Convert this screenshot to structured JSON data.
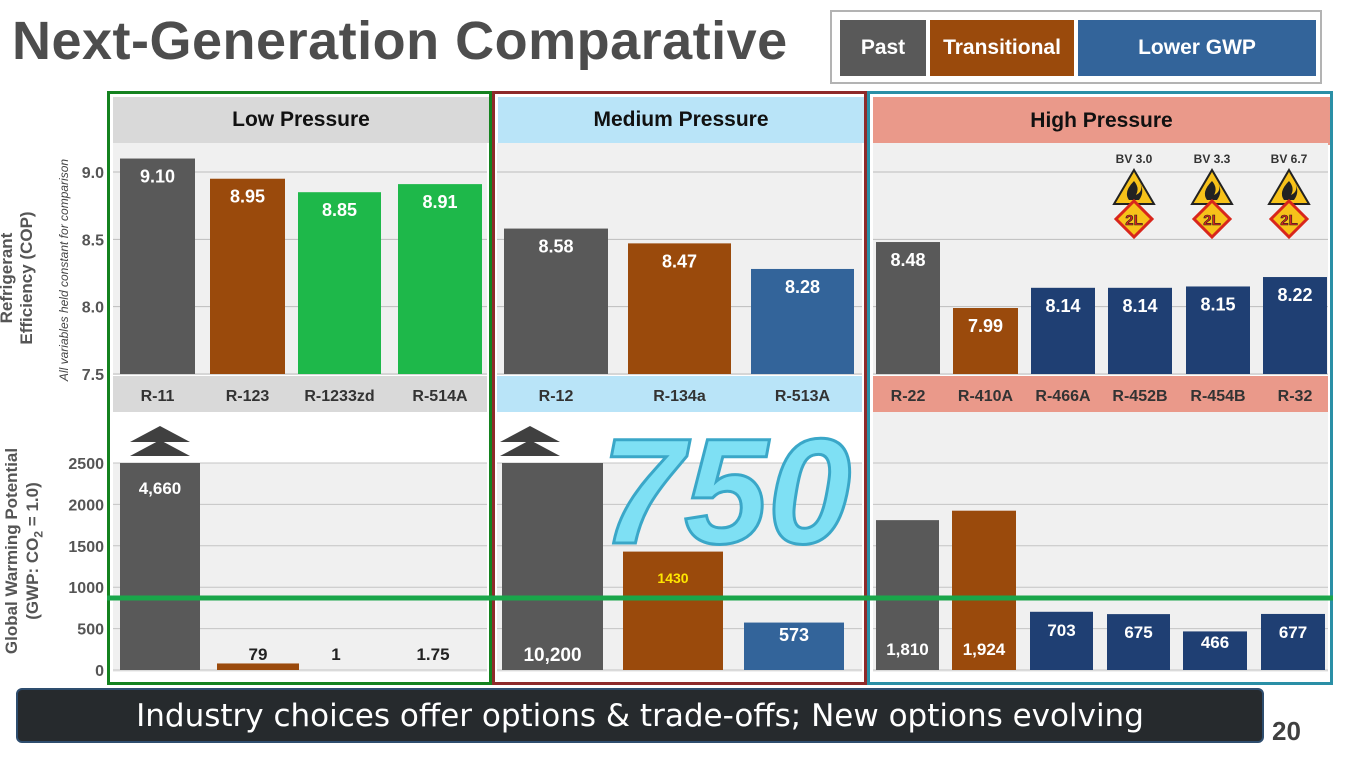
{
  "title": "Next-Generation Comparative",
  "legend": {
    "past": "Past",
    "transitional": "Transitional",
    "lower_gwp": "Lower GWP"
  },
  "colors": {
    "past": "#595959",
    "transitional": "#9a4a0c",
    "lower_gwp": "#33649a",
    "low_gwp_green": "#1eb84a",
    "navy": "#1f3f73",
    "highlight": "#7ee0f4"
  },
  "y_axis_top": {
    "title": "Refrigerant Efficiency (COP)",
    "note": "All variables held constant for comparison"
  },
  "y_axis_bottom": {
    "title_main": "Global Warming Potential",
    "title_sub": "(GWP: CO",
    "title_sub2": "2",
    "title_sub3": " = 1.0)"
  },
  "highlight_value": "750",
  "footer": "Industry choices offer options & trade-offs; New options evolving",
  "page_number": "20",
  "chart_data": [
    {
      "group": "Low Pressure",
      "type": "bar",
      "categories": [
        "R-11",
        "R-123",
        "R-1233zd",
        "R-514A"
      ],
      "cop": [
        9.1,
        8.95,
        8.85,
        8.91
      ],
      "cop_labels": [
        "9.10",
        "8.95",
        "8.85",
        "8.91"
      ],
      "cop_ylim": [
        7.5,
        9.0
      ],
      "cop_yticks": [
        "9.0",
        "8.5",
        "8.0",
        "7.5"
      ],
      "gwp": [
        4660,
        79,
        1,
        1.75
      ],
      "gwp_labels": [
        "4,660",
        "79",
        "1",
        "1.75"
      ],
      "gwp_ylim": [
        0,
        2500
      ],
      "gwp_yticks": [
        "2500",
        "2000",
        "1500",
        "1000",
        "500",
        "0"
      ],
      "classes": [
        "past",
        "transitional",
        "lower",
        "lower"
      ]
    },
    {
      "group": "Medium Pressure",
      "type": "bar",
      "categories": [
        "R-12",
        "R-134a",
        "R-513A"
      ],
      "cop": [
        8.58,
        8.47,
        8.28
      ],
      "cop_labels": [
        "8.58",
        "8.47",
        "8.28"
      ],
      "gwp": [
        10200,
        1430,
        573
      ],
      "gwp_labels": [
        "10,200",
        "1430",
        "573"
      ],
      "classes": [
        "past",
        "transitional",
        "lower"
      ]
    },
    {
      "group": "High Pressure",
      "type": "bar",
      "categories": [
        "R-22",
        "R-410A",
        "R-466A",
        "R-452B",
        "R-454B",
        "R-32"
      ],
      "cop": [
        8.48,
        7.99,
        8.14,
        8.14,
        8.15,
        8.22
      ],
      "cop_labels": [
        "8.48",
        "7.99",
        "8.14",
        "8.14",
        "8.15",
        "8.22"
      ],
      "gwp": [
        1810,
        1924,
        703,
        675,
        466,
        677
      ],
      "gwp_labels": [
        "1,810",
        "1,924",
        "703",
        "675",
        "466",
        "677"
      ],
      "classes": [
        "past",
        "transitional",
        "lower",
        "lower",
        "lower",
        "lower"
      ],
      "burning_velocity": [
        "",
        "",
        "",
        "BV 3.0",
        "BV 3.3",
        "BV 6.7"
      ],
      "safety_class": [
        "",
        "",
        "",
        "2L",
        "2L",
        "2L"
      ]
    }
  ]
}
